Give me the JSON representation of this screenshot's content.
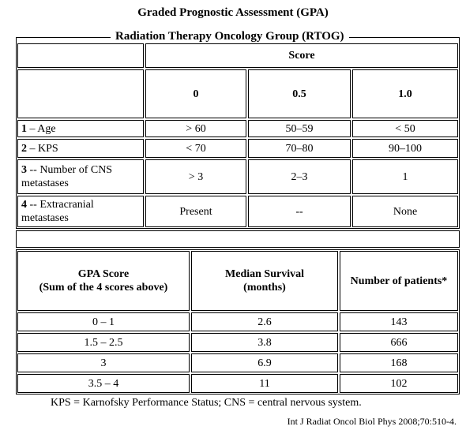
{
  "header": {
    "title": "Graded Prognostic Assessment (GPA)",
    "subtitle": "Radiation Therapy Oncology Group (RTOG)"
  },
  "score_table": {
    "group_header": "Score",
    "columns": [
      "0",
      "0.5",
      "1.0"
    ],
    "rows": [
      {
        "number": "1",
        "label": "– Age",
        "cells": [
          "> 60",
          "50–59",
          "< 50"
        ]
      },
      {
        "number": "2",
        "label": "– KPS",
        "cells": [
          "< 70",
          "70–80",
          "90–100"
        ]
      },
      {
        "number": "3",
        "label": "-- Number of CNS metastases",
        "cells": [
          "> 3",
          "2–3",
          "1"
        ]
      },
      {
        "number": "4",
        "label": "-- Extracranial metastases",
        "cells": [
          "Present",
          "--",
          "None"
        ]
      }
    ]
  },
  "survival_table": {
    "columns": [
      [
        "GPA Score",
        "(Sum of the 4 scores above)"
      ],
      [
        "Median Survival",
        "(months)"
      ],
      [
        "Number of patients*"
      ]
    ],
    "rows": [
      [
        "0 – 1",
        "2.6",
        "143"
      ],
      [
        "1.5 – 2.5",
        "3.8",
        "666"
      ],
      [
        "3",
        "6.9",
        "168"
      ],
      [
        "3.5 – 4",
        "11",
        "102"
      ]
    ]
  },
  "footnote": "KPS = Karnofsky Performance Status; CNS = central nervous system.",
  "citation": "Int J Radiat Oncol Biol Phys 2008;70:510-4."
}
